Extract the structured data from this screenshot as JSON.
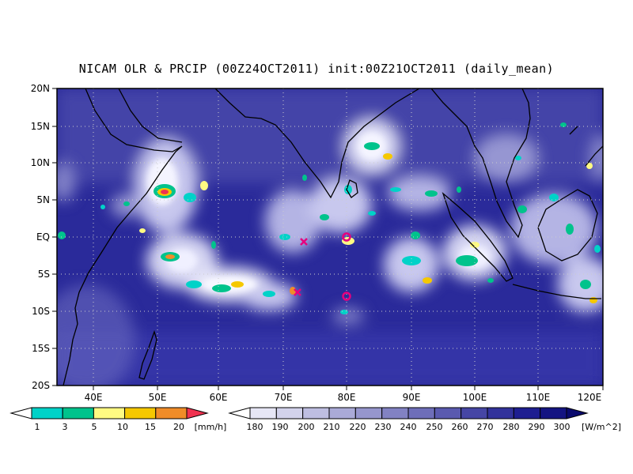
{
  "title": "NICAM OLR & PRCIP (00Z24OCT2011) init:00Z21OCT2011 (daily_mean)",
  "axes": {
    "lat_labels": [
      "20N",
      "15N",
      "10N",
      "5N",
      "EQ",
      "5S",
      "10S",
      "15S",
      "20S"
    ],
    "lat_values": [
      20,
      15,
      10,
      5,
      0,
      -5,
      -10,
      -15,
      -20
    ],
    "lon_labels": [
      "40E",
      "50E",
      "60E",
      "70E",
      "80E",
      "90E",
      "100E",
      "110E",
      "120E"
    ],
    "lon_values": [
      40,
      50,
      60,
      70,
      80,
      90,
      100,
      110,
      120
    ],
    "lon_range": [
      35,
      120
    ],
    "lat_range": [
      -20,
      20
    ],
    "grid": "dotted"
  },
  "precip_colorbar": {
    "labels": [
      "1",
      "3",
      "5",
      "10",
      "15",
      "20"
    ],
    "unit": "[mm/h]",
    "colors": [
      "#ffffff",
      "#00d2c8",
      "#00c38c",
      "#fffa82",
      "#f5c800",
      "#f08c28",
      "#f03250"
    ]
  },
  "olr_colorbar": {
    "labels": [
      "180",
      "190",
      "200",
      "210",
      "220",
      "230",
      "240",
      "250",
      "260",
      "270",
      "280",
      "290",
      "300"
    ],
    "unit": "[W/m^2]",
    "colors": [
      "#ffffff",
      "#e6e6f5",
      "#d2d2eb",
      "#bebee1",
      "#aaaad7",
      "#9696cd",
      "#8282c3",
      "#6e6eb9",
      "#5a5aaf",
      "#4646a5",
      "#32329b",
      "#1e1e91",
      "#141482",
      "#0a0a6e"
    ]
  },
  "markers": [
    {
      "type": "circle",
      "lon": 80,
      "lat": 0,
      "color": "#e6007e"
    },
    {
      "type": "circle",
      "lon": 80,
      "lat": -8,
      "color": "#e6007e"
    },
    {
      "type": "cross",
      "lon": 73,
      "lat": -1,
      "color": "#e6007e"
    },
    {
      "type": "cross",
      "lon": 72.5,
      "lat": -7,
      "color": "#e6007e"
    }
  ]
}
